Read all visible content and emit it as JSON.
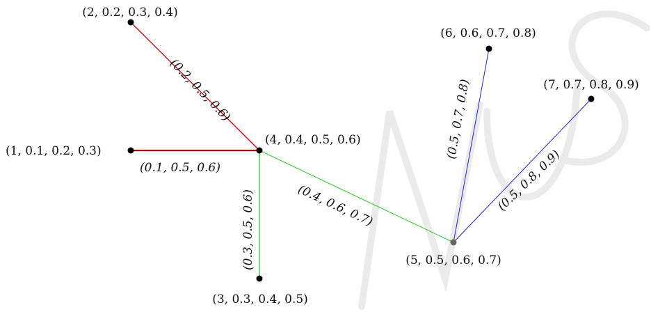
{
  "graph": {
    "nodes": [
      {
        "id": "1",
        "label": "(1, 0.1, 0.2, 0.3)",
        "color": "#000000"
      },
      {
        "id": "2",
        "label": "(2, 0.2, 0.3, 0.4)",
        "color": "#000000"
      },
      {
        "id": "3",
        "label": "(3, 0.3, 0.4, 0.5)",
        "color": "#000000"
      },
      {
        "id": "4",
        "label": "(4, 0.4, 0.5, 0.6)",
        "color": "#000000"
      },
      {
        "id": "5",
        "label": "(5, 0.5, 0.6, 0.7)",
        "color": "#666666"
      },
      {
        "id": "6",
        "label": "(6, 0.6, 0.7, 0.8)",
        "color": "#000000"
      },
      {
        "id": "7",
        "label": "(7, 0.7, 0.8, 0.9)",
        "color": "#000000"
      }
    ],
    "edges": [
      {
        "from": "2",
        "to": "4",
        "label": "(0.2, 0.5, 0.6)",
        "color": "#cc0000"
      },
      {
        "from": "1",
        "to": "4",
        "label": "(0.1, 0.5, 0.6)",
        "color": "#cc0000"
      },
      {
        "from": "4",
        "to": "3",
        "label": "(0.3, 0.5, 0.6)",
        "color": "#33cc33"
      },
      {
        "from": "4",
        "to": "5",
        "label": "(0.4, 0.6, 0.7)",
        "color": "#33cc33"
      },
      {
        "from": "5",
        "to": "6",
        "label": "(0.5, 0.7, 0.8)",
        "color": "#2222cc"
      },
      {
        "from": "5",
        "to": "7",
        "label": "(0.5, 0.8, 0.9)",
        "color": "#2222cc"
      }
    ]
  }
}
